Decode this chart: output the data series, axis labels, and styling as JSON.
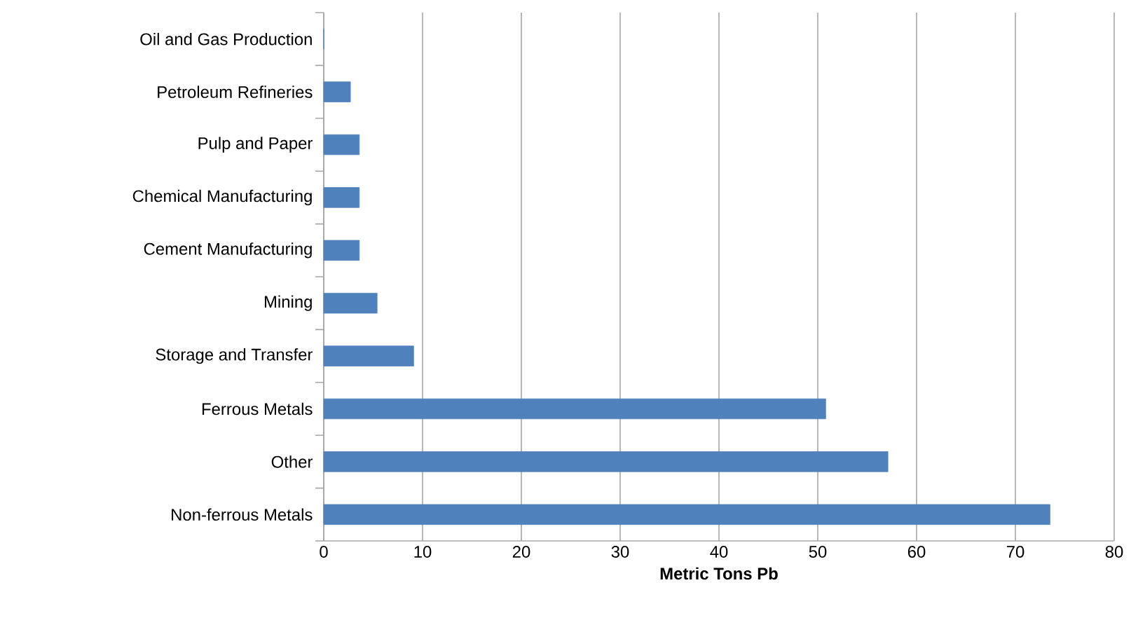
{
  "chart_data": {
    "type": "bar",
    "orientation": "horizontal",
    "xlabel": "Metric Tons Pb",
    "categories": [
      "Oil and Gas Production",
      "Petroleum Refineries",
      "Pulp and Paper",
      "Chemical Manufacturing",
      "Cement Manufacturing",
      "Mining",
      "Storage and Transfer",
      "Ferrous Metals",
      "Other",
      "Non-ferrous Metals"
    ],
    "values": [
      0,
      2.7,
      3.6,
      3.6,
      3.6,
      5.4,
      9.1,
      50.8,
      57.1,
      73.5
    ],
    "color": "#4f81bd",
    "xlim": [
      0,
      80
    ],
    "xticks": [
      0,
      10,
      20,
      30,
      40,
      50,
      60,
      70,
      80
    ],
    "grid": "x"
  }
}
